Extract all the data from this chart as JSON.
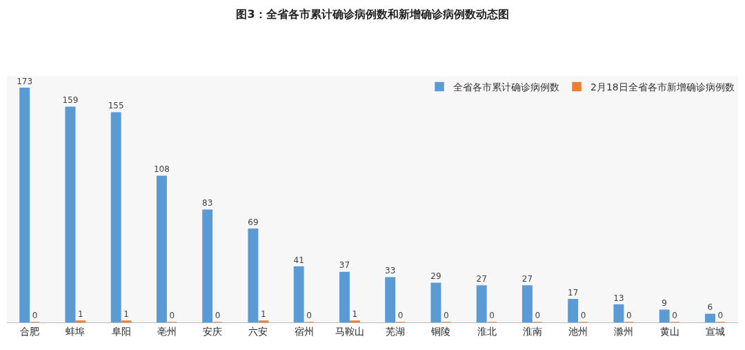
{
  "chart_data": {
    "type": "bar",
    "title": "图3：全省各市累计确诊病例数和新增确诊病例数动态图",
    "categories": [
      "合肥",
      "蚌埠",
      "阜阳",
      "亳州",
      "安庆",
      "六安",
      "宿州",
      "马鞍山",
      "芜湖",
      "铜陵",
      "淮北",
      "淮南",
      "池州",
      "滁州",
      "黄山",
      "宣城"
    ],
    "series": [
      {
        "name": "全省各市累计确诊病例数",
        "color": "#5b9bd5",
        "values": [
          173,
          159,
          155,
          108,
          83,
          69,
          41,
          37,
          33,
          29,
          27,
          27,
          17,
          13,
          9,
          6
        ]
      },
      {
        "name": "2月18日全省各市新增确诊病例数",
        "color": "#ed7d31",
        "values": [
          0,
          1,
          1,
          0,
          0,
          1,
          0,
          1,
          0,
          0,
          0,
          0,
          0,
          0,
          0,
          0
        ]
      }
    ],
    "data_labels": true,
    "legend": "top right",
    "grid": false
  }
}
